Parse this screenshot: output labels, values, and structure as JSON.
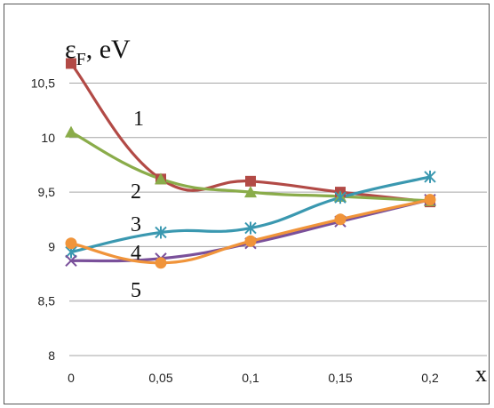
{
  "chart_data": {
    "type": "line",
    "x": [
      0,
      0.05,
      0.1,
      0.15,
      0.2
    ],
    "x_tick_labels": [
      "0",
      "0,05",
      "0,1",
      "0,15",
      "0,2"
    ],
    "y_tick_labels": [
      "8",
      "8,5",
      "9",
      "9,5",
      "10",
      "10,5"
    ],
    "y_ticks": [
      8,
      8.5,
      9,
      9.5,
      10,
      10.5
    ],
    "xlabel": "x",
    "ylabel": "εF, eV",
    "ylabel_main": "ε",
    "ylabel_sub": "F",
    "ylabel_unit": ", eV",
    "ylim": [
      8,
      10.8
    ],
    "xlim": [
      0,
      0.2
    ],
    "grid": "horizontal",
    "series": [
      {
        "label": "1",
        "color": "#b24a46",
        "marker": "square",
        "values": [
          10.68,
          9.62,
          9.6,
          9.5,
          9.41
        ]
      },
      {
        "label": "2",
        "color": "#8aac4a",
        "marker": "triangle",
        "values": [
          10.05,
          9.62,
          9.5,
          9.46,
          9.42
        ]
      },
      {
        "label": "3",
        "color": "#3a98b0",
        "marker": "asterisk",
        "values": [
          8.95,
          9.13,
          9.17,
          9.45,
          9.64
        ]
      },
      {
        "label": "4",
        "color": "#7a509a",
        "marker": "x",
        "values": [
          8.87,
          8.89,
          9.03,
          9.23,
          9.43
        ]
      },
      {
        "label": "5",
        "color": "#f0943a",
        "marker": "circle",
        "values": [
          9.03,
          8.85,
          9.05,
          9.25,
          9.43
        ]
      }
    ]
  }
}
